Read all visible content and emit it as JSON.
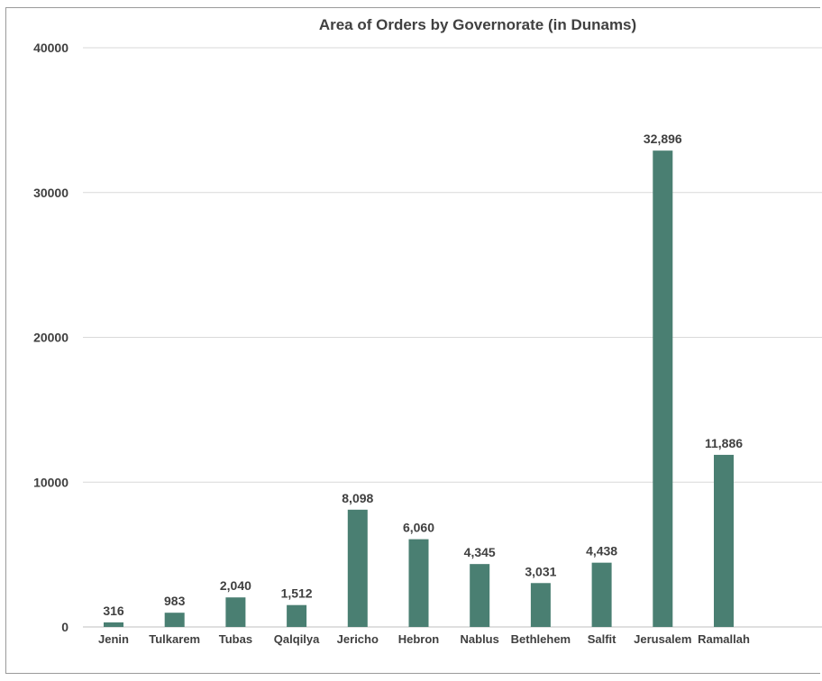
{
  "chart_data": {
    "type": "bar",
    "title": "Area of Orders by Governorate (in Dunams)",
    "xlabel": "",
    "ylabel": "",
    "categories": [
      "Jenin",
      "Tulkarem",
      "Tubas",
      "Qalqilya",
      "Jericho",
      "Hebron",
      "Nablus",
      "Bethlehem",
      "Salfit",
      "Jerusalem",
      "Ramallah"
    ],
    "values": [
      316,
      983,
      2040,
      1512,
      8098,
      6060,
      4345,
      3031,
      4438,
      32896,
      11886
    ],
    "data_labels": [
      "316",
      "983",
      "2,040",
      "1,512",
      "8,098",
      "6,060",
      "4,345",
      "3,031",
      "4,438",
      "32,896",
      "11,886"
    ],
    "ylim": [
      0,
      40000
    ],
    "yticks": [
      0,
      10000,
      20000,
      30000,
      40000
    ],
    "ytick_labels": [
      "0",
      "10000",
      "20000",
      "30000",
      "40000"
    ],
    "grid": true,
    "legend": "none",
    "bar_color": "#4a7f72",
    "grid_color": "#d9d9d9"
  }
}
